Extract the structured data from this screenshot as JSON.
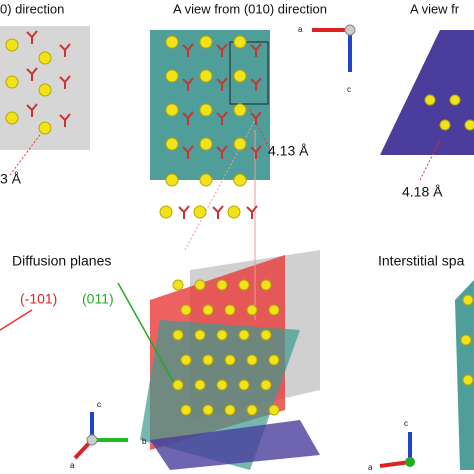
{
  "panels": [
    {
      "title": "0) direction",
      "distance": "3 Å"
    },
    {
      "title": "A view from (010) direction",
      "distance": "4.13 Å",
      "axes": [
        "a",
        "c"
      ]
    },
    {
      "title": "A view fr",
      "distance": "4.18 Å"
    },
    {
      "title": "Diffusion planes",
      "planes": [
        "(-101)",
        "(011)"
      ],
      "axes": [
        "c",
        "b",
        "a"
      ]
    },
    {
      "title": "Interstitial spa",
      "axes": [
        "c",
        "a"
      ]
    }
  ]
}
